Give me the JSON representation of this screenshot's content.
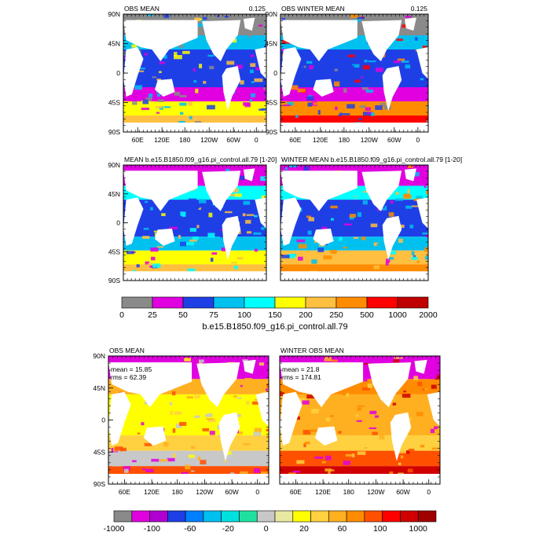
{
  "colors": {
    "land": "#ffffff",
    "frame": "#000000",
    "top_scale": [
      "#8a8a8a",
      "#e000e0",
      "#1f3fe6",
      "#00c0f0",
      "#00ffff",
      "#ffff00",
      "#ffbf40",
      "#ff8c00",
      "#ff0000",
      "#c00000"
    ],
    "bottom_scale": [
      "#8a8a8a",
      "#e000e0",
      "#b000d0",
      "#1f3fe6",
      "#0080ff",
      "#00c0f0",
      "#00e0e0",
      "#20e0a0",
      "#c8c8c8",
      "#e8e8a0",
      "#ffff00",
      "#ffd040",
      "#ffb020",
      "#ff8c00",
      "#ff5000",
      "#ff0000",
      "#d00000",
      "#a00000"
    ]
  },
  "chart_data": [
    {
      "type": "heatmap",
      "title_left": "OBS MEAN",
      "title_right": "0.125",
      "y_ticks": [
        "90N",
        "45N",
        "0",
        "45S",
        "90S"
      ],
      "x_ticks": [
        "60E",
        "120E",
        "180",
        "120W",
        "60W",
        "0"
      ],
      "stats": [],
      "palette": "top",
      "bg": [
        "#e000e0",
        "#1f3fe6",
        "#00c0f0",
        "#ffff00",
        "#ffbf40",
        "#8a8a8a"
      ]
    },
    {
      "type": "heatmap",
      "title_left": "OBS WINTER MEAN",
      "title_right": "0.125",
      "y_ticks": [
        "90N",
        "45N",
        "0",
        "45S",
        "90S"
      ],
      "x_ticks": [
        "60E",
        "120E",
        "180",
        "120W",
        "60W",
        "0"
      ],
      "stats": [],
      "palette": "top",
      "bg": [
        "#e000e0",
        "#1f3fe6",
        "#00c0f0",
        "#ff8c00",
        "#ff0000",
        "#8a8a8a"
      ]
    },
    {
      "type": "heatmap",
      "title_left": "MEAN b.e15.B1850.f09_g16.pi_control.all.79 [1-20]",
      "title_right": "",
      "y_ticks": [
        "90N",
        "45N",
        "0",
        "45S",
        "90S"
      ],
      "x_ticks": [],
      "stats": [],
      "palette": "top",
      "bg": [
        "#00c0f0",
        "#1f3fe6",
        "#00ffff",
        "#ffff00",
        "#ffbf40",
        "#e000e0"
      ]
    },
    {
      "type": "heatmap",
      "title_left": "WINTER MEAN b.e15.B1850.f09_g16.pi_control.all.79 [1-20]",
      "title_right": "",
      "y_ticks": [],
      "x_ticks": [],
      "stats": [],
      "palette": "top",
      "bg": [
        "#00c0f0",
        "#1f3fe6",
        "#00ffff",
        "#ffbf40",
        "#ff8c00",
        "#e000e0"
      ]
    },
    {
      "type": "heatmap",
      "title_left": "OBS MEAN",
      "title_right": "",
      "y_ticks": [
        "90N",
        "45N",
        "0",
        "45S",
        "90S"
      ],
      "x_ticks": [
        "60E",
        "120E",
        "180",
        "120W",
        "60W",
        "0"
      ],
      "stats": [
        "mean = 15.85",
        "rms = 62.39"
      ],
      "palette": "bottom",
      "bg": [
        "#ffd040",
        "#ffff00",
        "#ffb020",
        "#c8c8c8",
        "#ff5000",
        "#e000e0"
      ]
    },
    {
      "type": "heatmap",
      "title_left": "WINTER OBS MEAN",
      "title_right": "",
      "y_ticks": [],
      "x_ticks": [
        "60E",
        "120E",
        "180",
        "120W",
        "60W",
        "0"
      ],
      "stats": [
        "mean = 21.8",
        "rms = 174.81"
      ],
      "palette": "bottom",
      "bg": [
        "#ffd040",
        "#ffb020",
        "#ff8c00",
        "#ff5000",
        "#d00000",
        "#e000e0"
      ]
    }
  ],
  "colorbars": [
    {
      "labels": [
        "0",
        "25",
        "50",
        "75",
        "100",
        "150",
        "200",
        "250",
        "500",
        "1000",
        "2000"
      ],
      "title": "b.e15.B1850.f09_g16.pi_control.all.79"
    },
    {
      "labels": [
        "-1000",
        "-100",
        "-60",
        "-20",
        "0",
        "20",
        "60",
        "100",
        "1000"
      ],
      "title": ""
    }
  ]
}
